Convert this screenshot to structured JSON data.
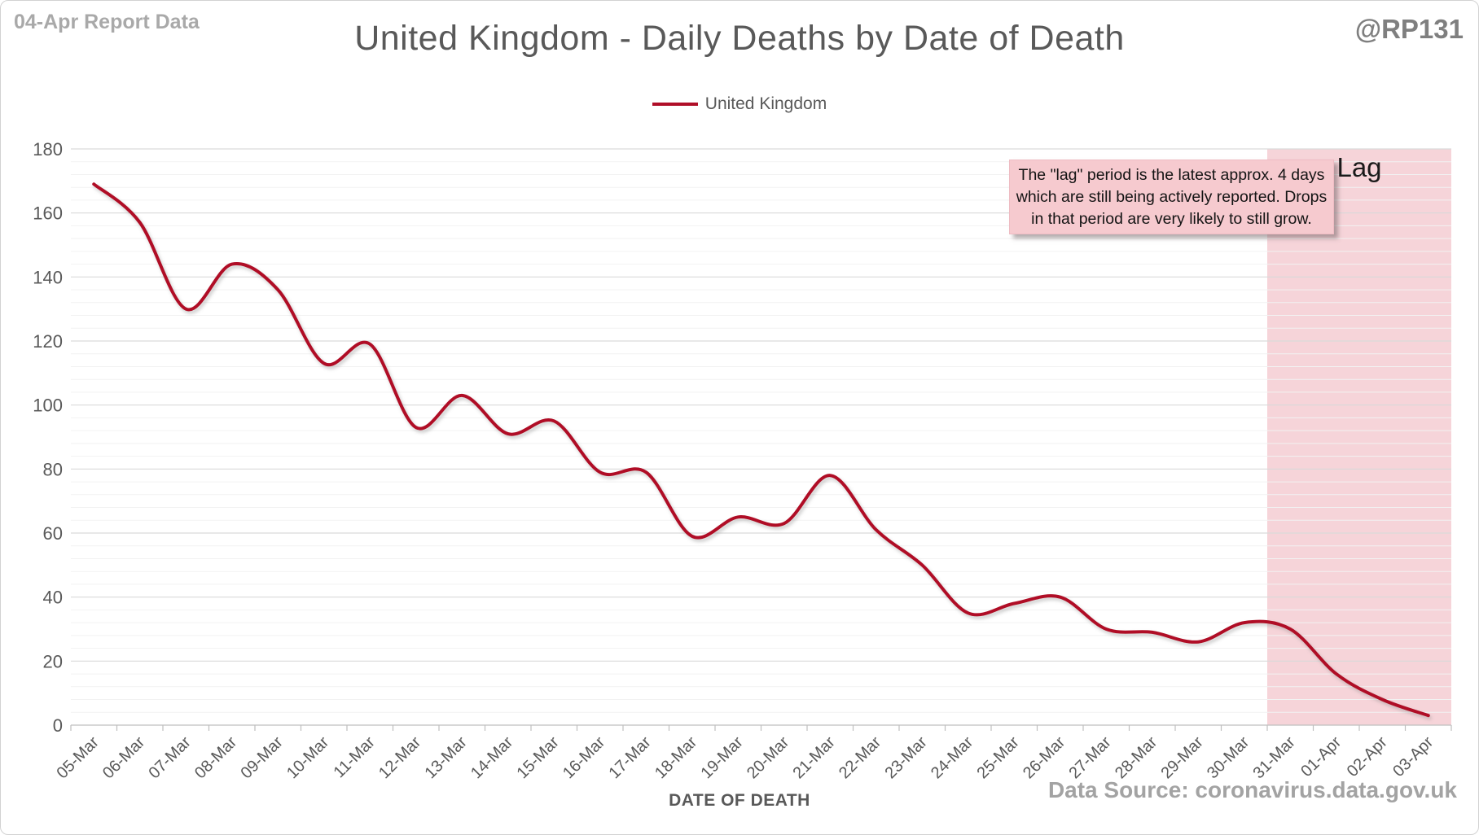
{
  "header": {
    "report_label": "04-Apr Report Data",
    "title": "United Kingdom - Daily Deaths by Date of Death",
    "watermark": "@RP131"
  },
  "legend": {
    "label": "United Kingdom"
  },
  "annotation": {
    "lines": [
      "The \"lag\" period is the latest approx. 4 days",
      "which are still being actively reported.  Drops",
      "in that period are very likely to still grow."
    ]
  },
  "footer": {
    "data_source": "Data Source: coronavirus.data.gov.uk"
  },
  "chart_data": {
    "type": "line",
    "title": "United Kingdom - Daily Deaths by Date of Death",
    "xlabel": "DATE OF DEATH",
    "ylabel": "",
    "ylim": [
      0,
      180
    ],
    "y_major_step": 20,
    "y_minor_step": 4,
    "grid": true,
    "legend_position": "top-center",
    "categories": [
      "05-Mar",
      "06-Mar",
      "07-Mar",
      "08-Mar",
      "09-Mar",
      "10-Mar",
      "11-Mar",
      "12-Mar",
      "13-Mar",
      "14-Mar",
      "15-Mar",
      "16-Mar",
      "17-Mar",
      "18-Mar",
      "19-Mar",
      "20-Mar",
      "21-Mar",
      "22-Mar",
      "23-Mar",
      "24-Mar",
      "25-Mar",
      "26-Mar",
      "27-Mar",
      "28-Mar",
      "29-Mar",
      "30-Mar",
      "31-Mar",
      "01-Apr",
      "02-Apr",
      "03-Apr"
    ],
    "series": [
      {
        "name": "United Kingdom",
        "color": "#B00E28",
        "smooth": true,
        "values": [
          169,
          157,
          130,
          144,
          136,
          113,
          119,
          93,
          103,
          91,
          95,
          79,
          79,
          59,
          65,
          63,
          78,
          61,
          50,
          35,
          38,
          40,
          30,
          29,
          26,
          32,
          30,
          16,
          8,
          3
        ]
      }
    ],
    "lag_region": {
      "label": "Lag",
      "from_category": "31-Mar",
      "fill": "#f6d4d9"
    },
    "colors": {
      "major_gridline": "#d9d9d9",
      "minor_gridline": "#f2f2f2",
      "axis_line": "#bfbfbf",
      "tick_label": "#595959"
    }
  }
}
